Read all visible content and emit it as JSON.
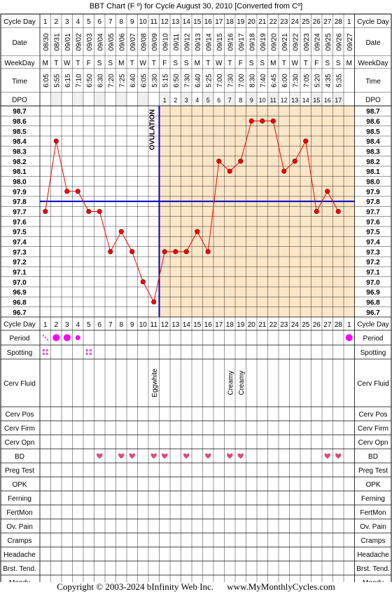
{
  "title": "BBT Chart (F º) for Cycle August 30, 2010  [Converted from Cº]",
  "footer": {
    "copyright": "Copyright © 2003-2024 bInfinity Web Inc.",
    "site": "www.MyMonthlyCycles.com"
  },
  "row_labels": {
    "cycle_day": "Cycle Day",
    "date": "Date",
    "weekday": "WeekDay",
    "time": "Time",
    "dpo": "DPO",
    "period": "Period",
    "spotting": "Spotting",
    "cerv_fluid": "Cerv Fluid",
    "cerv_pos": "Cerv Pos",
    "cerv_firm": "Cerv Firm",
    "cerv_opn": "Cerv Opn",
    "bd": "BD",
    "preg_test": "Preg Test",
    "opk": "OPK",
    "ferning": "Ferning",
    "fertmon": "FertMon",
    "ov_pain": "Ov. Pain",
    "cramps": "Cramps",
    "headache": "Headache",
    "brst_tend": "Brst. Tend.",
    "moody": "Moody"
  },
  "cycle_days": [
    "1",
    "2",
    "3",
    "4",
    "5",
    "6",
    "7",
    "8",
    "9",
    "10",
    "11",
    "12",
    "13",
    "14",
    "15",
    "16",
    "17",
    "18",
    "19",
    "20",
    "21",
    "22",
    "23",
    "24",
    "25",
    "26",
    "27",
    "28",
    "1"
  ],
  "dates": [
    "08/30",
    "08/31",
    "09/01",
    "09/02",
    "09/03",
    "09/04",
    "09/05",
    "09/06",
    "09/07",
    "09/08",
    "09/09",
    "09/10",
    "09/11",
    "09/12",
    "09/13",
    "09/14",
    "09/15",
    "09/16",
    "09/17",
    "09/18",
    "09/19",
    "09/20",
    "09/21",
    "09/22",
    "09/23",
    "09/24",
    "09/25",
    "09/26",
    "09/27"
  ],
  "weekdays": [
    "M",
    "T",
    "W",
    "T",
    "F",
    "S",
    "S",
    "M",
    "T",
    "W",
    "T",
    "F",
    "S",
    "S",
    "M",
    "T",
    "W",
    "T",
    "F",
    "S",
    "S",
    "M",
    "T",
    "W",
    "T",
    "F",
    "S",
    "S",
    "M"
  ],
  "times": [
    "6:05",
    "5:55",
    "6:15",
    "7:10",
    "6:50",
    "6:30",
    "7:20",
    "7:25",
    "6:40",
    "6:05",
    "5:30",
    "5:15",
    "6:50",
    "7:30",
    "6:40",
    "5:25",
    "7:00",
    "7:30",
    "7:00",
    "8:30",
    "7:40",
    "6:45",
    "6:00",
    "7:30",
    "7:05",
    "5:20",
    "4:35",
    "5:35",
    ""
  ],
  "dpo": [
    "",
    "",
    "",
    "",
    "",
    "",
    "",
    "",
    "",
    "",
    "",
    "1",
    "2",
    "3",
    "4",
    "5",
    "6",
    "7",
    "8",
    "9",
    "10",
    "11",
    "12",
    "13",
    "14",
    "15",
    "16",
    "17",
    ""
  ],
  "ovulation_label": "OVULATION",
  "cerv_fluid": [
    "",
    "",
    "",
    "",
    "",
    "",
    "",
    "",
    "",
    "",
    "Eggwhite",
    "",
    "",
    "",
    "",
    "",
    "",
    "Creamy",
    "Creamy",
    "",
    "",
    "",
    "",
    "",
    "",
    "",
    "",
    "",
    ""
  ],
  "period": [
    "spot",
    "heavy",
    "heavy",
    "light",
    "",
    "",
    "",
    "",
    "",
    "",
    "",
    "",
    "",
    "",
    "",
    "",
    "",
    "",
    "",
    "",
    "",
    "",
    "",
    "",
    "",
    "",
    "",
    "",
    "heavy"
  ],
  "spotting": [
    true,
    false,
    false,
    false,
    true,
    false,
    false,
    false,
    false,
    false,
    false,
    false,
    false,
    false,
    false,
    false,
    false,
    false,
    false,
    false,
    false,
    false,
    false,
    false,
    false,
    false,
    false,
    false,
    false
  ],
  "bd": [
    false,
    false,
    false,
    false,
    false,
    true,
    false,
    true,
    true,
    false,
    true,
    true,
    false,
    true,
    false,
    true,
    false,
    true,
    true,
    false,
    false,
    false,
    false,
    false,
    false,
    false,
    true,
    true,
    false
  ],
  "colors": {
    "line": "#ff0000",
    "point_fill": "#ff0000",
    "coverline": "#0000cc",
    "ovulation_line": "#0000cc",
    "luteal_shade": "#fbe6c7",
    "period_dot": "#ff00ff",
    "bd_heart": "#e0487a",
    "spotting_dot": "#e060d0",
    "grid": "#000000"
  },
  "chart_data": {
    "type": "line",
    "title": "BBT Chart (F º) for Cycle August 30, 2010  [Converted from Cº]",
    "x": [
      1,
      2,
      3,
      4,
      5,
      6,
      7,
      8,
      9,
      10,
      11,
      12,
      13,
      14,
      15,
      16,
      17,
      18,
      19,
      20,
      21,
      22,
      23,
      24,
      25,
      26,
      27,
      28
    ],
    "temperatures": [
      97.7,
      98.4,
      97.9,
      97.9,
      97.7,
      97.7,
      97.3,
      97.5,
      97.3,
      97.0,
      96.8,
      97.3,
      97.3,
      97.3,
      97.5,
      97.3,
      98.2,
      98.1,
      98.2,
      98.6,
      98.6,
      98.6,
      98.1,
      98.2,
      98.4,
      97.7,
      97.9,
      97.7
    ],
    "y_ticks": [
      "98.7",
      "98.6",
      "98.5",
      "98.4",
      "98.3",
      "98.2",
      "98.1",
      "98.0",
      "97.9",
      "97.8",
      "97.7",
      "97.6",
      "97.5",
      "97.4",
      "97.3",
      "97.2",
      "97.1",
      "97.0",
      "96.9",
      "96.8",
      "96.7"
    ],
    "ylim": [
      96.7,
      98.7
    ],
    "coverline": 97.8,
    "ovulation_day": 11,
    "grid": true
  }
}
